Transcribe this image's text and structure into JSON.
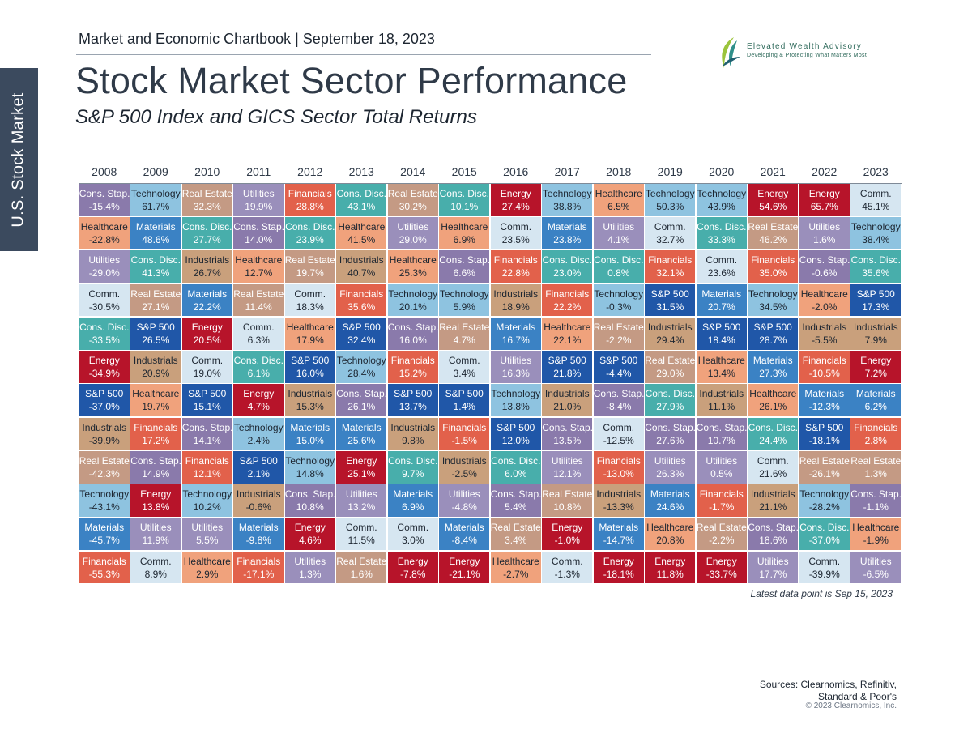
{
  "side_tab": "U.S. Stock Market",
  "header": {
    "chartbook": "Market and Economic Chartbook | September 18, 2023",
    "title": "Stock Market Sector Performance",
    "subtitle": "S&P 500 Index and GICS Sector Total Returns"
  },
  "logo": {
    "name": "Elevated Wealth Advisory",
    "tagline": "Developing & Protecting What Matters Most",
    "colors": [
      "#9bc43c",
      "#2f8f8a",
      "#1f5f70"
    ]
  },
  "footnote": "Latest data point is Sep 15, 2023",
  "sources": {
    "line1": "Sources: Clearnomics, Refinitiv,",
    "line2": "Standard & Poor's",
    "copyright": "© 2023 Clearnomics, Inc."
  },
  "chart_data": {
    "type": "table",
    "ranking": "Columns are years; within each year sectors are ordered from highest to lowest total return",
    "sector_colors": {
      "Cons. Stap.": {
        "bg": "#8a7aab",
        "fg": "#ffffff"
      },
      "Technology": {
        "bg": "#8ec3e0",
        "fg": "#1d2631"
      },
      "Real Estate": {
        "bg": "#c49a84",
        "fg": "#ffffff"
      },
      "Utilities": {
        "bg": "#9a8fbb",
        "fg": "#ffffff"
      },
      "Financials": {
        "bg": "#e2614b",
        "fg": "#ffffff"
      },
      "Cons. Disc.": {
        "bg": "#48aeab",
        "fg": "#ffffff"
      },
      "Energy": {
        "bg": "#b7142a",
        "fg": "#ffffff"
      },
      "Healthcare": {
        "bg": "#f0a27c",
        "fg": "#1d2631"
      },
      "Comm.": {
        "bg": "#d6e6f1",
        "fg": "#1d2631"
      },
      "Materials": {
        "bg": "#3b82c4",
        "fg": "#ffffff"
      },
      "Industrials": {
        "bg": "#c9a07c",
        "fg": "#1d2631"
      },
      "S&P 500": {
        "bg": "#2057a8",
        "fg": "#ffffff"
      }
    },
    "years": [
      {
        "year": "2008",
        "cells": [
          [
            "Cons. Stap.",
            "-15.4%"
          ],
          [
            "Healthcare",
            "-22.8%"
          ],
          [
            "Utilities",
            "-29.0%"
          ],
          [
            "Comm.",
            "-30.5%"
          ],
          [
            "Cons. Disc.",
            "-33.5%"
          ],
          [
            "Energy",
            "-34.9%"
          ],
          [
            "S&P 500",
            "-37.0%"
          ],
          [
            "Industrials",
            "-39.9%"
          ],
          [
            "Real Estate",
            "-42.3%"
          ],
          [
            "Technology",
            "-43.1%"
          ],
          [
            "Materials",
            "-45.7%"
          ],
          [
            "Financials",
            "-55.3%"
          ]
        ]
      },
      {
        "year": "2009",
        "cells": [
          [
            "Technology",
            "61.7%"
          ],
          [
            "Materials",
            "48.6%"
          ],
          [
            "Cons. Disc.",
            "41.3%"
          ],
          [
            "Real Estate",
            "27.1%"
          ],
          [
            "S&P 500",
            "26.5%"
          ],
          [
            "Industrials",
            "20.9%"
          ],
          [
            "Healthcare",
            "19.7%"
          ],
          [
            "Financials",
            "17.2%"
          ],
          [
            "Cons. Stap.",
            "14.9%"
          ],
          [
            "Energy",
            "13.8%"
          ],
          [
            "Utilities",
            "11.9%"
          ],
          [
            "Comm.",
            "8.9%"
          ]
        ]
      },
      {
        "year": "2010",
        "cells": [
          [
            "Real Estate",
            "32.3%"
          ],
          [
            "Cons. Disc.",
            "27.7%"
          ],
          [
            "Industrials",
            "26.7%"
          ],
          [
            "Materials",
            "22.2%"
          ],
          [
            "Energy",
            "20.5%"
          ],
          [
            "Comm.",
            "19.0%"
          ],
          [
            "S&P 500",
            "15.1%"
          ],
          [
            "Cons. Stap.",
            "14.1%"
          ],
          [
            "Financials",
            "12.1%"
          ],
          [
            "Technology",
            "10.2%"
          ],
          [
            "Utilities",
            "5.5%"
          ],
          [
            "Healthcare",
            "2.9%"
          ]
        ]
      },
      {
        "year": "2011",
        "cells": [
          [
            "Utilities",
            "19.9%"
          ],
          [
            "Cons. Stap.",
            "14.0%"
          ],
          [
            "Healthcare",
            "12.7%"
          ],
          [
            "Real Estate",
            "11.4%"
          ],
          [
            "Comm.",
            "6.3%"
          ],
          [
            "Cons. Disc.",
            "6.1%"
          ],
          [
            "Energy",
            "4.7%"
          ],
          [
            "Technology",
            "2.4%"
          ],
          [
            "S&P 500",
            "2.1%"
          ],
          [
            "Industrials",
            "-0.6%"
          ],
          [
            "Materials",
            "-9.8%"
          ],
          [
            "Financials",
            "-17.1%"
          ]
        ]
      },
      {
        "year": "2012",
        "cells": [
          [
            "Financials",
            "28.8%"
          ],
          [
            "Cons. Disc.",
            "23.9%"
          ],
          [
            "Real Estate",
            "19.7%"
          ],
          [
            "Comm.",
            "18.3%"
          ],
          [
            "Healthcare",
            "17.9%"
          ],
          [
            "S&P 500",
            "16.0%"
          ],
          [
            "Industrials",
            "15.3%"
          ],
          [
            "Materials",
            "15.0%"
          ],
          [
            "Technology",
            "14.8%"
          ],
          [
            "Cons. Stap.",
            "10.8%"
          ],
          [
            "Energy",
            "4.6%"
          ],
          [
            "Utilities",
            "1.3%"
          ]
        ]
      },
      {
        "year": "2013",
        "cells": [
          [
            "Cons. Disc.",
            "43.1%"
          ],
          [
            "Healthcare",
            "41.5%"
          ],
          [
            "Industrials",
            "40.7%"
          ],
          [
            "Financials",
            "35.6%"
          ],
          [
            "S&P 500",
            "32.4%"
          ],
          [
            "Technology",
            "28.4%"
          ],
          [
            "Cons. Stap.",
            "26.1%"
          ],
          [
            "Materials",
            "25.6%"
          ],
          [
            "Energy",
            "25.1%"
          ],
          [
            "Utilities",
            "13.2%"
          ],
          [
            "Comm.",
            "11.5%"
          ],
          [
            "Real Estate",
            "1.6%"
          ]
        ]
      },
      {
        "year": "2014",
        "cells": [
          [
            "Real Estate",
            "30.2%"
          ],
          [
            "Utilities",
            "29.0%"
          ],
          [
            "Healthcare",
            "25.3%"
          ],
          [
            "Technology",
            "20.1%"
          ],
          [
            "Cons. Stap.",
            "16.0%"
          ],
          [
            "Financials",
            "15.2%"
          ],
          [
            "S&P 500",
            "13.7%"
          ],
          [
            "Industrials",
            "9.8%"
          ],
          [
            "Cons. Disc.",
            "9.7%"
          ],
          [
            "Materials",
            "6.9%"
          ],
          [
            "Comm.",
            "3.0%"
          ],
          [
            "Energy",
            "-7.8%"
          ]
        ]
      },
      {
        "year": "2015",
        "cells": [
          [
            "Cons. Disc.",
            "10.1%"
          ],
          [
            "Healthcare",
            "6.9%"
          ],
          [
            "Cons. Stap.",
            "6.6%"
          ],
          [
            "Technology",
            "5.9%"
          ],
          [
            "Real Estate",
            "4.7%"
          ],
          [
            "Comm.",
            "3.4%"
          ],
          [
            "S&P 500",
            "1.4%"
          ],
          [
            "Financials",
            "-1.5%"
          ],
          [
            "Industrials",
            "-2.5%"
          ],
          [
            "Utilities",
            "-4.8%"
          ],
          [
            "Materials",
            "-8.4%"
          ],
          [
            "Energy",
            "-21.1%"
          ]
        ]
      },
      {
        "year": "2016",
        "cells": [
          [
            "Energy",
            "27.4%"
          ],
          [
            "Comm.",
            "23.5%"
          ],
          [
            "Financials",
            "22.8%"
          ],
          [
            "Industrials",
            "18.9%"
          ],
          [
            "Materials",
            "16.7%"
          ],
          [
            "Utilities",
            "16.3%"
          ],
          [
            "Technology",
            "13.8%"
          ],
          [
            "S&P 500",
            "12.0%"
          ],
          [
            "Cons. Disc.",
            "6.0%"
          ],
          [
            "Cons. Stap.",
            "5.4%"
          ],
          [
            "Real Estate",
            "3.4%"
          ],
          [
            "Healthcare",
            "-2.7%"
          ]
        ]
      },
      {
        "year": "2017",
        "cells": [
          [
            "Technology",
            "38.8%"
          ],
          [
            "Materials",
            "23.8%"
          ],
          [
            "Cons. Disc.",
            "23.0%"
          ],
          [
            "Financials",
            "22.2%"
          ],
          [
            "Healthcare",
            "22.1%"
          ],
          [
            "S&P 500",
            "21.8%"
          ],
          [
            "Industrials",
            "21.0%"
          ],
          [
            "Cons. Stap.",
            "13.5%"
          ],
          [
            "Utilities",
            "12.1%"
          ],
          [
            "Real Estate",
            "10.8%"
          ],
          [
            "Energy",
            "-1.0%"
          ],
          [
            "Comm.",
            "-1.3%"
          ]
        ]
      },
      {
        "year": "2018",
        "cells": [
          [
            "Healthcare",
            "6.5%"
          ],
          [
            "Utilities",
            "4.1%"
          ],
          [
            "Cons. Disc.",
            "0.8%"
          ],
          [
            "Technology",
            "-0.3%"
          ],
          [
            "Real Estate",
            "-2.2%"
          ],
          [
            "S&P 500",
            "-4.4%"
          ],
          [
            "Cons. Stap.",
            "-8.4%"
          ],
          [
            "Comm.",
            "-12.5%"
          ],
          [
            "Financials",
            "-13.0%"
          ],
          [
            "Industrials",
            "-13.3%"
          ],
          [
            "Materials",
            "-14.7%"
          ],
          [
            "Energy",
            "-18.1%"
          ]
        ]
      },
      {
        "year": "2019",
        "cells": [
          [
            "Technology",
            "50.3%"
          ],
          [
            "Comm.",
            "32.7%"
          ],
          [
            "Financials",
            "32.1%"
          ],
          [
            "S&P 500",
            "31.5%"
          ],
          [
            "Industrials",
            "29.4%"
          ],
          [
            "Real Estate",
            "29.0%"
          ],
          [
            "Cons. Disc.",
            "27.9%"
          ],
          [
            "Cons. Stap.",
            "27.6%"
          ],
          [
            "Utilities",
            "26.3%"
          ],
          [
            "Materials",
            "24.6%"
          ],
          [
            "Healthcare",
            "20.8%"
          ],
          [
            "Energy",
            "11.8%"
          ]
        ]
      },
      {
        "year": "2020",
        "cells": [
          [
            "Technology",
            "43.9%"
          ],
          [
            "Cons. Disc.",
            "33.3%"
          ],
          [
            "Comm.",
            "23.6%"
          ],
          [
            "Materials",
            "20.7%"
          ],
          [
            "S&P 500",
            "18.4%"
          ],
          [
            "Healthcare",
            "13.4%"
          ],
          [
            "Industrials",
            "11.1%"
          ],
          [
            "Cons. Stap.",
            "10.7%"
          ],
          [
            "Utilities",
            "0.5%"
          ],
          [
            "Financials",
            "-1.7%"
          ],
          [
            "Real Estate",
            "-2.2%"
          ],
          [
            "Energy",
            "-33.7%"
          ]
        ]
      },
      {
        "year": "2021",
        "cells": [
          [
            "Energy",
            "54.6%"
          ],
          [
            "Real Estate",
            "46.2%"
          ],
          [
            "Financials",
            "35.0%"
          ],
          [
            "Technology",
            "34.5%"
          ],
          [
            "S&P 500",
            "28.7%"
          ],
          [
            "Materials",
            "27.3%"
          ],
          [
            "Healthcare",
            "26.1%"
          ],
          [
            "Cons. Disc.",
            "24.4%"
          ],
          [
            "Comm.",
            "21.6%"
          ],
          [
            "Industrials",
            "21.1%"
          ],
          [
            "Cons. Stap.",
            "18.6%"
          ],
          [
            "Utilities",
            "17.7%"
          ]
        ]
      },
      {
        "year": "2022",
        "cells": [
          [
            "Energy",
            "65.7%"
          ],
          [
            "Utilities",
            "1.6%"
          ],
          [
            "Cons. Stap.",
            "-0.6%"
          ],
          [
            "Healthcare",
            "-2.0%"
          ],
          [
            "Industrials",
            "-5.5%"
          ],
          [
            "Financials",
            "-10.5%"
          ],
          [
            "Materials",
            "-12.3%"
          ],
          [
            "S&P 500",
            "-18.1%"
          ],
          [
            "Real Estate",
            "-26.1%"
          ],
          [
            "Technology",
            "-28.2%"
          ],
          [
            "Cons. Disc.",
            "-37.0%"
          ],
          [
            "Comm.",
            "-39.9%"
          ]
        ]
      },
      {
        "year": "2023",
        "cells": [
          [
            "Comm.",
            "45.1%"
          ],
          [
            "Technology",
            "38.4%"
          ],
          [
            "Cons. Disc.",
            "35.6%"
          ],
          [
            "S&P 500",
            "17.3%"
          ],
          [
            "Industrials",
            "7.9%"
          ],
          [
            "Energy",
            "7.2%"
          ],
          [
            "Materials",
            "6.2%"
          ],
          [
            "Financials",
            "2.8%"
          ],
          [
            "Real Estate",
            "1.3%"
          ],
          [
            "Cons. Stap.",
            "-1.1%"
          ],
          [
            "Healthcare",
            "-1.9%"
          ],
          [
            "Utilities",
            "-6.5%"
          ]
        ]
      }
    ]
  }
}
